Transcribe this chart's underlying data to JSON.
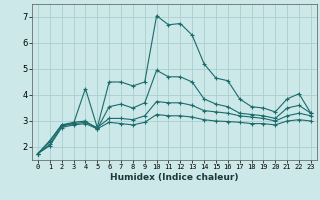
{
  "xlabel": "Humidex (Indice chaleur)",
  "xlim": [
    -0.5,
    23.5
  ],
  "ylim": [
    1.5,
    7.5
  ],
  "yticks": [
    2,
    3,
    4,
    5,
    6,
    7
  ],
  "xticks": [
    0,
    1,
    2,
    3,
    4,
    5,
    6,
    7,
    8,
    9,
    10,
    11,
    12,
    13,
    14,
    15,
    16,
    17,
    18,
    19,
    20,
    21,
    22,
    23
  ],
  "bg_color": "#cce8e8",
  "grid_color": "#aacfcf",
  "line_color": "#1a6b6b",
  "series": [
    [
      1.75,
      2.25,
      2.85,
      2.9,
      4.25,
      2.75,
      4.5,
      4.5,
      4.35,
      4.5,
      7.05,
      6.7,
      6.75,
      6.3,
      5.2,
      4.65,
      4.55,
      3.85,
      3.55,
      3.5,
      3.35,
      3.85,
      4.05,
      3.3
    ],
    [
      1.75,
      2.2,
      2.85,
      2.95,
      3.0,
      2.7,
      3.55,
      3.65,
      3.5,
      3.7,
      4.95,
      4.7,
      4.7,
      4.5,
      3.85,
      3.65,
      3.55,
      3.3,
      3.25,
      3.2,
      3.1,
      3.5,
      3.6,
      3.3
    ],
    [
      1.75,
      2.1,
      2.8,
      2.9,
      2.95,
      2.75,
      3.1,
      3.1,
      3.05,
      3.2,
      3.75,
      3.7,
      3.7,
      3.6,
      3.4,
      3.35,
      3.3,
      3.2,
      3.15,
      3.1,
      3.0,
      3.2,
      3.3,
      3.2
    ],
    [
      1.75,
      2.05,
      2.75,
      2.85,
      2.9,
      2.7,
      2.95,
      2.9,
      2.85,
      2.95,
      3.25,
      3.2,
      3.2,
      3.15,
      3.05,
      3.0,
      2.98,
      2.95,
      2.9,
      2.9,
      2.85,
      3.0,
      3.05,
      3.0
    ]
  ]
}
